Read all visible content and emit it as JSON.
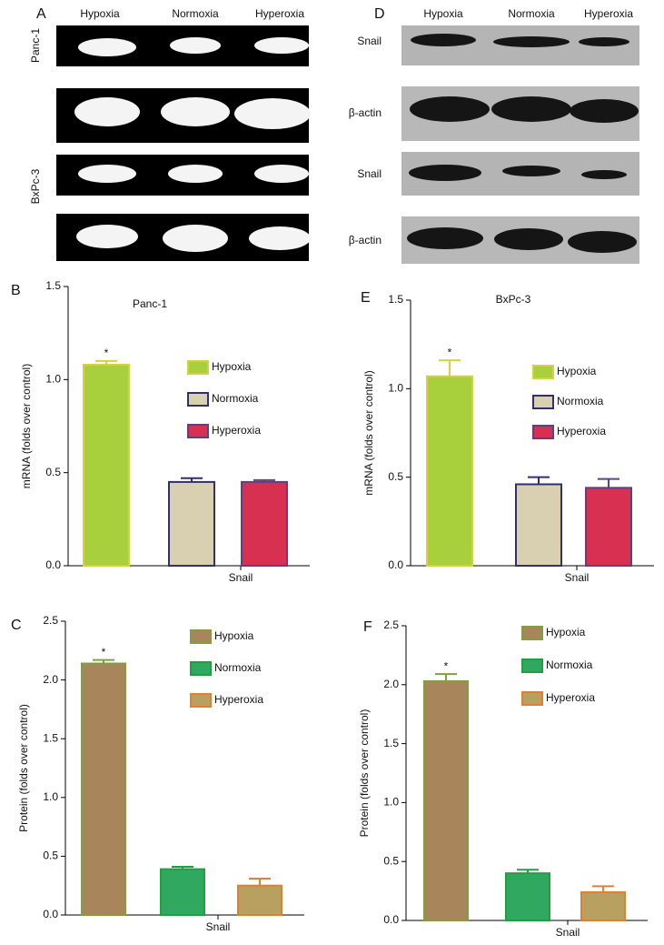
{
  "gels": [
    {
      "letter": "A",
      "lanes": [
        "Hypoxia",
        "Normoxia",
        "Hyperoxia"
      ],
      "row_labels": [
        "Panc-1",
        "BxPc-3"
      ]
    },
    {
      "letter": "D",
      "lanes": [
        "Hypoxia",
        "Normoxia",
        "Hyperoxia"
      ],
      "row_labels": [
        "Snail",
        "β-actin",
        "Snail",
        "β-actin"
      ]
    }
  ],
  "chart_data": [
    {
      "type": "bar",
      "letter": "B",
      "title": "Panc-1",
      "ylabel": "mRNA (folds over control)",
      "categories": [
        "Snail"
      ],
      "ylim": [
        0,
        1.5
      ],
      "yticks": [
        {
          "value": 0,
          "label": "0.0"
        },
        0.5,
        {
          "value": 1,
          "label": "1.0"
        },
        1.5
      ],
      "series": [
        {
          "name": "Hypoxia",
          "color": "#a8d03c",
          "edgecolor": "#d8d040",
          "values": [
            1.08
          ],
          "errors": [
            0.02
          ],
          "annotation": "*"
        },
        {
          "name": "Normoxia",
          "color": "#d8d0b0",
          "edgecolor": "#303070",
          "values": [
            0.45
          ],
          "errors": [
            0.02
          ]
        },
        {
          "name": "Hyperoxia",
          "color": "#d83050",
          "edgecolor": "#604080",
          "values": [
            0.45
          ],
          "errors": [
            0.01
          ]
        }
      ]
    },
    {
      "type": "bar",
      "letter": "E",
      "title": "BxPc-3",
      "ylabel": "mRNA (folds over control)",
      "categories": [
        "Snail"
      ],
      "ylim": [
        0,
        1.5
      ],
      "yticks": [
        {
          "value": 0,
          "label": "0.0"
        },
        0.5,
        {
          "value": 1,
          "label": "1.0"
        },
        1.5
      ],
      "series": [
        {
          "name": "Hypoxia",
          "color": "#a8d03c",
          "edgecolor": "#d8d040",
          "values": [
            1.07
          ],
          "errors": [
            0.09
          ],
          "annotation": "*"
        },
        {
          "name": "Normoxia",
          "color": "#d8d0b0",
          "edgecolor": "#303070",
          "values": [
            0.46
          ],
          "errors": [
            0.04
          ]
        },
        {
          "name": "Hyperoxia",
          "color": "#d83050",
          "edgecolor": "#604080",
          "values": [
            0.44
          ],
          "errors": [
            0.05
          ]
        }
      ]
    },
    {
      "type": "bar",
      "letter": "C",
      "ylabel": "Protein (folds over control)",
      "categories": [
        "Snail"
      ],
      "ylim": [
        0,
        2.5
      ],
      "yticks": [
        {
          "value": 0,
          "label": "0.0"
        },
        0.5,
        {
          "value": 1,
          "label": "1.0"
        },
        1.5,
        {
          "value": 2,
          "label": "2.0"
        },
        2.5
      ],
      "series": [
        {
          "name": "Hypoxia",
          "color": "#a8855a",
          "edgecolor": "#80a040",
          "values": [
            2.14
          ],
          "errors": [
            0.03
          ],
          "annotation": "*"
        },
        {
          "name": "Normoxia",
          "color": "#30a860",
          "edgecolor": "#20a040",
          "values": [
            0.39
          ],
          "errors": [
            0.02
          ]
        },
        {
          "name": "Hyperoxia",
          "color": "#b8a060",
          "edgecolor": "#e08030",
          "values": [
            0.25
          ],
          "errors": [
            0.06
          ]
        }
      ]
    },
    {
      "type": "bar",
      "letter": "F",
      "ylabel": "Protein (folds over control)",
      "categories": [
        "Snail"
      ],
      "ylim": [
        0,
        2.5
      ],
      "yticks": [
        {
          "value": 0,
          "label": "0.0"
        },
        0.5,
        {
          "value": 1,
          "label": "1.0"
        },
        1.5,
        {
          "value": 2,
          "label": "2.0"
        },
        2.5
      ],
      "series": [
        {
          "name": "Hypoxia",
          "color": "#a8855a",
          "edgecolor": "#80a040",
          "values": [
            2.03
          ],
          "errors": [
            0.06
          ],
          "annotation": "*"
        },
        {
          "name": "Normoxia",
          "color": "#30a860",
          "edgecolor": "#20a040",
          "values": [
            0.4
          ],
          "errors": [
            0.03
          ]
        },
        {
          "name": "Hyperoxia",
          "color": "#b8a060",
          "edgecolor": "#e08030",
          "values": [
            0.24
          ],
          "errors": [
            0.05
          ]
        }
      ]
    }
  ]
}
